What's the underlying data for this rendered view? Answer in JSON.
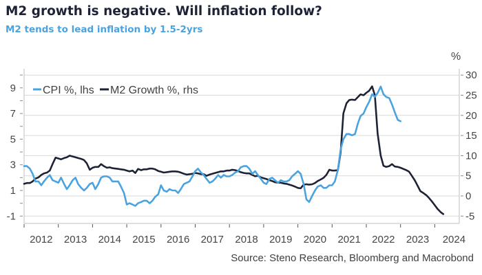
{
  "header": {
    "title": "M2 growth is negative. Will inflation follow?",
    "subtitle": "M2 tends to lead inflation by 1.5-2yrs"
  },
  "footer": {
    "source": "Source: Steno Research, Bloomberg and Macrobond"
  },
  "colors": {
    "cpi": "#4aa3df",
    "m2": "#1e2235",
    "grid": "#d9d9d9",
    "axis": "#bfbfbf"
  },
  "chart_data": {
    "type": "line",
    "title": "M2 growth is negative. Will inflation follow?",
    "subtitle": "M2 tends to lead inflation by 1.5-2yrs",
    "xlabel": "",
    "ylabel_left": "",
    "ylabel_right": "%",
    "x_range": [
      2012.0,
      2024.7
    ],
    "x_ticks": [
      "2012",
      "2013",
      "2014",
      "2015",
      "2016",
      "2017",
      "2018",
      "2019",
      "2020",
      "2021",
      "2022",
      "2023",
      "2024"
    ],
    "ylim_left": [
      -1.5,
      10.5
    ],
    "yticks_left": [
      -1,
      1,
      3,
      5,
      7,
      9
    ],
    "ylim_right": [
      -6,
      31
    ],
    "yticks_right": [
      -5,
      0,
      5,
      10,
      15,
      20,
      25,
      30
    ],
    "grid": true,
    "legend_position": "top-left",
    "series": [
      {
        "name": "CPI %, lhs",
        "axis": "left",
        "x": [
          2012.0,
          2012.08,
          2012.17,
          2012.25,
          2012.33,
          2012.42,
          2012.5,
          2012.58,
          2012.67,
          2012.75,
          2012.83,
          2012.92,
          2013.0,
          2013.08,
          2013.17,
          2013.25,
          2013.33,
          2013.42,
          2013.5,
          2013.58,
          2013.67,
          2013.75,
          2013.83,
          2013.92,
          2014.0,
          2014.08,
          2014.17,
          2014.25,
          2014.33,
          2014.42,
          2014.5,
          2014.58,
          2014.67,
          2014.75,
          2014.83,
          2014.92,
          2015.0,
          2015.08,
          2015.17,
          2015.25,
          2015.33,
          2015.42,
          2015.5,
          2015.58,
          2015.67,
          2015.75,
          2015.83,
          2015.92,
          2016.0,
          2016.08,
          2016.17,
          2016.25,
          2016.33,
          2016.42,
          2016.5,
          2016.58,
          2016.67,
          2016.75,
          2016.83,
          2016.92,
          2017.0,
          2017.08,
          2017.17,
          2017.25,
          2017.33,
          2017.42,
          2017.5,
          2017.58,
          2017.67,
          2017.75,
          2017.83,
          2017.92,
          2018.0,
          2018.08,
          2018.17,
          2018.25,
          2018.33,
          2018.42,
          2018.5,
          2018.58,
          2018.67,
          2018.75,
          2018.83,
          2018.92,
          2019.0,
          2019.08,
          2019.17,
          2019.25,
          2019.33,
          2019.42,
          2019.5,
          2019.58,
          2019.67,
          2019.75,
          2019.83,
          2019.92,
          2020.0,
          2020.08,
          2020.17,
          2020.25,
          2020.33,
          2020.42,
          2020.5,
          2020.58,
          2020.67,
          2020.75,
          2020.83,
          2020.92,
          2021.0,
          2021.08,
          2021.17,
          2021.25,
          2021.33,
          2021.42,
          2021.5,
          2021.58,
          2021.67,
          2021.75,
          2021.83,
          2021.92,
          2022.0,
          2022.08,
          2022.17,
          2022.25,
          2022.33,
          2022.42,
          2022.5,
          2022.58,
          2022.67,
          2022.75,
          2022.83,
          2022.92,
          2023.0
        ],
        "values": [
          2.9,
          2.9,
          2.7,
          2.3,
          1.7,
          1.7,
          1.4,
          1.7,
          2.0,
          2.2,
          1.8,
          1.7,
          1.6,
          2.0,
          1.5,
          1.1,
          1.4,
          1.8,
          2.0,
          1.5,
          1.2,
          1.0,
          1.2,
          1.5,
          1.6,
          1.1,
          1.5,
          2.0,
          2.1,
          2.1,
          2.0,
          1.7,
          1.7,
          1.7,
          1.3,
          0.8,
          -0.1,
          0.0,
          -0.1,
          -0.2,
          0.0,
          0.1,
          0.2,
          0.2,
          0.0,
          0.2,
          0.5,
          0.7,
          1.4,
          1.0,
          0.9,
          1.1,
          1.0,
          1.0,
          0.8,
          1.1,
          1.5,
          1.6,
          1.7,
          2.1,
          2.5,
          2.7,
          2.4,
          2.2,
          1.9,
          1.6,
          1.7,
          1.9,
          2.2,
          2.0,
          2.2,
          2.1,
          2.1,
          2.2,
          2.4,
          2.5,
          2.8,
          2.9,
          2.9,
          2.7,
          2.3,
          2.5,
          2.2,
          1.9,
          1.6,
          1.5,
          1.9,
          2.0,
          1.8,
          1.6,
          1.8,
          1.7,
          1.7,
          1.8,
          2.1,
          2.3,
          2.5,
          2.3,
          1.5,
          0.3,
          0.1,
          0.6,
          1.0,
          1.3,
          1.4,
          1.2,
          1.2,
          1.4,
          1.4,
          1.7,
          2.6,
          4.2,
          5.0,
          5.4,
          5.4,
          5.3,
          5.4,
          6.2,
          6.8,
          7.0,
          7.5,
          7.9,
          8.5,
          8.3,
          8.6,
          9.1,
          8.5,
          8.3,
          8.2,
          7.7,
          7.1,
          6.5,
          6.4
        ]
      },
      {
        "name": "M2 Growth %, rhs",
        "axis": "right",
        "x": [
          2012.0,
          2012.08,
          2012.17,
          2012.25,
          2012.33,
          2012.42,
          2012.5,
          2012.58,
          2012.67,
          2012.75,
          2012.83,
          2012.92,
          2013.0,
          2013.08,
          2013.17,
          2013.25,
          2013.33,
          2013.42,
          2013.5,
          2013.58,
          2013.67,
          2013.75,
          2013.83,
          2013.92,
          2014.0,
          2014.08,
          2014.17,
          2014.25,
          2014.33,
          2014.42,
          2014.5,
          2014.58,
          2014.67,
          2014.75,
          2014.83,
          2014.92,
          2015.0,
          2015.08,
          2015.17,
          2015.25,
          2015.33,
          2015.42,
          2015.5,
          2015.58,
          2015.67,
          2015.75,
          2015.83,
          2015.92,
          2016.0,
          2016.08,
          2016.17,
          2016.25,
          2016.33,
          2016.42,
          2016.5,
          2016.58,
          2016.67,
          2016.75,
          2016.83,
          2016.92,
          2017.0,
          2017.08,
          2017.17,
          2017.25,
          2017.33,
          2017.42,
          2017.5,
          2017.58,
          2017.67,
          2017.75,
          2017.83,
          2017.92,
          2018.0,
          2018.08,
          2018.17,
          2018.25,
          2018.33,
          2018.42,
          2018.5,
          2018.58,
          2018.67,
          2018.75,
          2018.83,
          2018.92,
          2019.0,
          2019.08,
          2019.17,
          2019.25,
          2019.33,
          2019.42,
          2019.5,
          2019.58,
          2019.67,
          2019.75,
          2019.83,
          2019.92,
          2020.0,
          2020.08,
          2020.17,
          2020.25,
          2020.33,
          2020.42,
          2020.5,
          2020.58,
          2020.67,
          2020.75,
          2020.83,
          2020.92,
          2021.0,
          2021.08,
          2021.17,
          2021.25,
          2021.33,
          2021.42,
          2021.5,
          2021.58,
          2021.67,
          2021.75,
          2021.83,
          2021.92,
          2022.0,
          2022.08,
          2022.17,
          2022.25,
          2022.33,
          2022.42,
          2022.5,
          2022.58,
          2022.67,
          2022.75,
          2022.83,
          2022.92,
          2023.0,
          2023.08,
          2023.17,
          2023.25,
          2023.33,
          2023.42,
          2023.5,
          2023.58,
          2023.67,
          2023.75,
          2023.83,
          2023.92,
          2024.0,
          2024.08,
          2024.17,
          2024.25
        ],
        "values": [
          3.0,
          3.2,
          3.2,
          3.6,
          4.3,
          4.6,
          5.2,
          5.6,
          5.8,
          6.3,
          7.9,
          9.5,
          9.3,
          9.1,
          9.4,
          9.6,
          10.0,
          9.8,
          9.6,
          9.4,
          9.2,
          8.9,
          8.1,
          6.5,
          7.0,
          7.2,
          7.2,
          7.9,
          7.4,
          7.0,
          7.1,
          6.9,
          6.8,
          6.7,
          6.6,
          6.5,
          6.3,
          6.1,
          6.3,
          5.7,
          6.7,
          6.4,
          6.6,
          6.6,
          6.8,
          6.8,
          6.6,
          6.2,
          6.0,
          5.8,
          5.9,
          6.0,
          6.1,
          6.1,
          6.0,
          5.8,
          5.5,
          5.3,
          5.4,
          5.5,
          5.7,
          5.6,
          5.4,
          5.4,
          5.0,
          5.3,
          5.5,
          5.7,
          5.9,
          6.1,
          6.1,
          6.3,
          6.3,
          6.5,
          6.4,
          6.2,
          5.9,
          5.7,
          5.6,
          5.6,
          5.2,
          4.9,
          5.0,
          4.6,
          4.4,
          4.2,
          3.9,
          3.7,
          3.4,
          3.3,
          3.3,
          3.1,
          3.0,
          2.8,
          2.6,
          2.3,
          2.0,
          1.9,
          2.8,
          2.9,
          2.8,
          2.9,
          3.2,
          3.7,
          4.1,
          4.5,
          5.2,
          6.5,
          6.3,
          6.3,
          6.4,
          10.8,
          20.5,
          23.0,
          23.8,
          23.9,
          23.8,
          24.5,
          25.2,
          25.0,
          25.6,
          26.1,
          27.2,
          25.0,
          15.5,
          10.0,
          7.5,
          7.2,
          7.4,
          7.9,
          7.3,
          7.2,
          7.0,
          6.7,
          6.4,
          6.0,
          5.0,
          3.8,
          2.5,
          1.2,
          0.7,
          0.2,
          -0.5,
          -1.4,
          -2.3,
          -3.2,
          -4.0,
          -4.5
        ]
      }
    ]
  }
}
